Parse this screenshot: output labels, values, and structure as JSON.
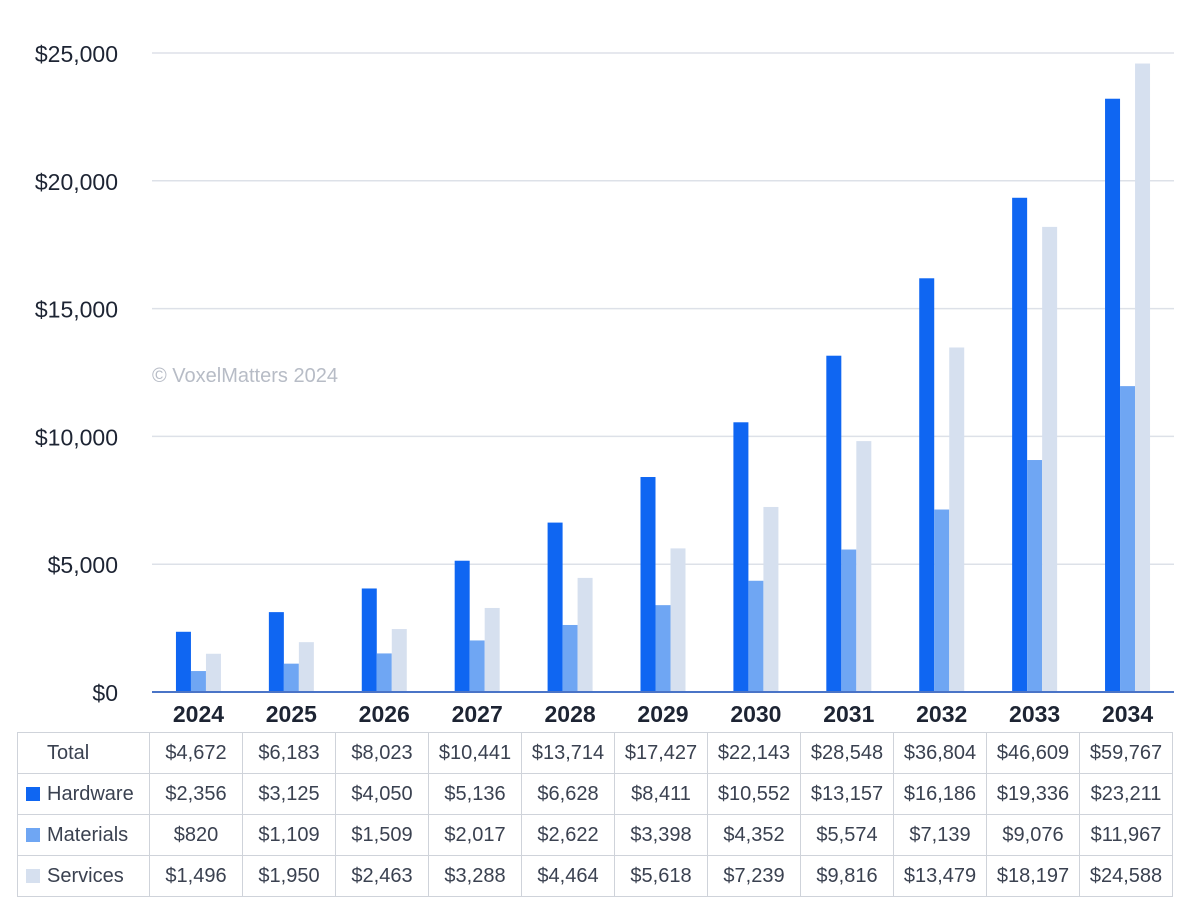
{
  "title": "",
  "watermark": "© VoxelMatters 2024",
  "colors": {
    "hardware": "#0f66f2",
    "materials": "#6fa6f3",
    "services": "#d6e0ef",
    "grid": "#dde1e8",
    "axis": "#4a74c7"
  },
  "chart_data": {
    "type": "bar",
    "categories": [
      "2024",
      "2025",
      "2026",
      "2027",
      "2028",
      "2029",
      "2030",
      "2031",
      "2032",
      "2033",
      "2034"
    ],
    "series": [
      {
        "name": "Hardware",
        "color": "#0f66f2",
        "values": [
          2356,
          3125,
          4050,
          5136,
          6628,
          8411,
          10552,
          13157,
          16186,
          19336,
          23211
        ]
      },
      {
        "name": "Materials",
        "color": "#6fa6f3",
        "values": [
          820,
          1109,
          1509,
          2017,
          2622,
          3398,
          4352,
          5574,
          7139,
          9076,
          11967
        ]
      },
      {
        "name": "Services",
        "color": "#d6e0ef",
        "values": [
          1496,
          1950,
          2463,
          3288,
          4464,
          5618,
          7239,
          9816,
          13479,
          18197,
          24588
        ]
      }
    ],
    "ylim": [
      0,
      25000
    ],
    "yticks": [
      0,
      5000,
      10000,
      15000,
      20000,
      25000
    ],
    "ytick_labels": [
      "$0",
      "$5,000",
      "$10,000",
      "$15,000",
      "$20,000",
      "$25,000"
    ],
    "grid": true,
    "legend": "table-below"
  },
  "table": {
    "rows": [
      {
        "label": "Total",
        "series": "",
        "values": [
          "$4,672",
          "$6,183",
          "$8,023",
          "$10,441",
          "$13,714",
          "$17,427",
          "$22,143",
          "$28,548",
          "$36,804",
          "$46,609",
          "$59,767"
        ]
      },
      {
        "label": "Hardware",
        "series": "hardware",
        "values": [
          "$2,356",
          "$3,125",
          "$4,050",
          "$5,136",
          "$6,628",
          "$8,411",
          "$10,552",
          "$13,157",
          "$16,186",
          "$19,336",
          "$23,211"
        ]
      },
      {
        "label": "Materials",
        "series": "materials",
        "values": [
          "$820",
          "$1,109",
          "$1,509",
          "$2,017",
          "$2,622",
          "$3,398",
          "$4,352",
          "$5,574",
          "$7,139",
          "$9,076",
          "$11,967"
        ]
      },
      {
        "label": "Services",
        "series": "services",
        "values": [
          "$1,496",
          "$1,950",
          "$2,463",
          "$3,288",
          "$4,464",
          "$5,618",
          "$7,239",
          "$9,816",
          "$13,479",
          "$18,197",
          "$24,588"
        ]
      }
    ]
  }
}
